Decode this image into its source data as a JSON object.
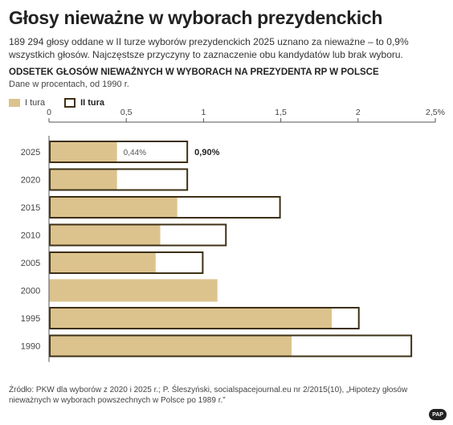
{
  "header": {
    "title": "Głosy nieważne w wyborach prezydenckich",
    "lead": "189 294 głosy oddane w II turze wyborów prezydenckich 2025 uznano za nieważne – to 0,9% wszystkich głosów. Najczęstsze przyczyny to zaznaczenie obu kandydatów lub brak wyboru."
  },
  "chart_data": {
    "type": "bar",
    "orientation": "horizontal",
    "title": "ODSETEK GŁOSÓW NIEWAŻNYCH W WYBORACH NA PREZYDENTA RP W POLSCE",
    "subtitle": "Dane w procentach, od 1990 r.",
    "categories": [
      "2025",
      "2020",
      "2015",
      "2010",
      "2005",
      "2000",
      "1995",
      "1990"
    ],
    "series": [
      {
        "name": "I tura",
        "values": [
          0.44,
          0.44,
          0.83,
          0.72,
          0.69,
          1.09,
          1.83,
          1.57
        ],
        "color": "#dcc38d"
      },
      {
        "name": "II tura",
        "values": [
          0.9,
          0.9,
          1.5,
          1.15,
          1.0,
          null,
          2.01,
          2.35
        ],
        "color": "#3d3016"
      }
    ],
    "data_labels": {
      "I tura": "0,44%",
      "II tura": "0,90%"
    },
    "xlim": [
      0,
      2.5
    ],
    "xticks": [
      "0",
      "0,5",
      "1",
      "1,5",
      "2",
      "2,5%"
    ],
    "legend": "top-left",
    "grid": false
  },
  "footer": {
    "source": "Źródło: PKW dla wyborów z 2020 i 2025 r.; P. Śleszyński, socialspacejournal.eu nr 2/2015(10), „Hipotezy głosów nieważnych w wyborach powszechnych w Polsce po 1989 r.”",
    "logo": "PAP"
  }
}
